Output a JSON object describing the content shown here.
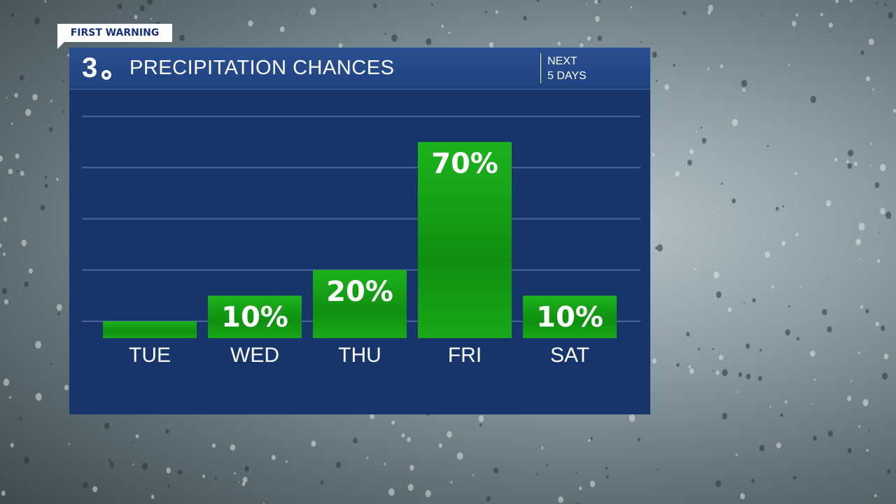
{
  "badge": {
    "text": "FIRST WARNING"
  },
  "header": {
    "logo_text": "3",
    "title": "PRECIPITATION CHANCES",
    "period_line1": "NEXT",
    "period_line2": "5 DAYS"
  },
  "colors": {
    "panel": "#17356b",
    "header": "#1f4280",
    "bar": "#16a316",
    "bar_dark": "#0f8a10",
    "gridline": "#4b6597",
    "text": "#ffffff"
  },
  "chart_data": {
    "type": "bar",
    "title": "PRECIPITATION CHANCES",
    "xlabel": "",
    "ylabel": "",
    "ylim": [
      0,
      100
    ],
    "grid": true,
    "categories": [
      "TUE",
      "WED",
      "THU",
      "FRI",
      "SAT"
    ],
    "values": [
      0,
      10,
      20,
      70,
      10
    ],
    "data_labels": [
      "",
      "10%",
      "20%",
      "70%",
      "10%"
    ]
  }
}
